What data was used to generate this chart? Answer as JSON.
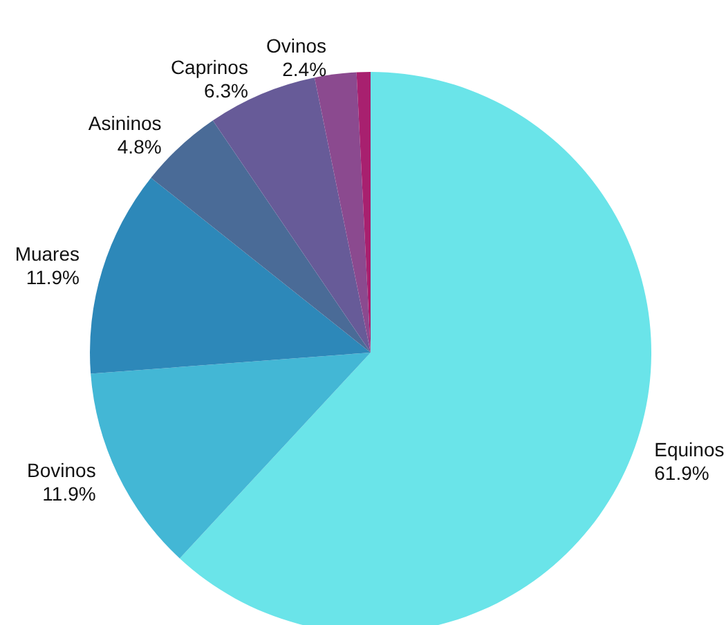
{
  "chart_data": {
    "type": "pie",
    "categories": [
      "Equinos",
      "Bovinos",
      "Muares",
      "Asininos",
      "Caprinos",
      "Ovinos",
      null
    ],
    "values": [
      61.9,
      11.9,
      11.9,
      4.8,
      6.3,
      2.4,
      0.8
    ],
    "value_labels": [
      "61.9%",
      "11.9%",
      "11.9%",
      "4.8%",
      "6.3%",
      "2.4%",
      null
    ],
    "colors": [
      "#6ae4e9",
      "#43b7d5",
      "#2d88b9",
      "#4a6b97",
      "#675b98",
      "#8b4a8f",
      "#a8206f"
    ],
    "legend": false
  }
}
